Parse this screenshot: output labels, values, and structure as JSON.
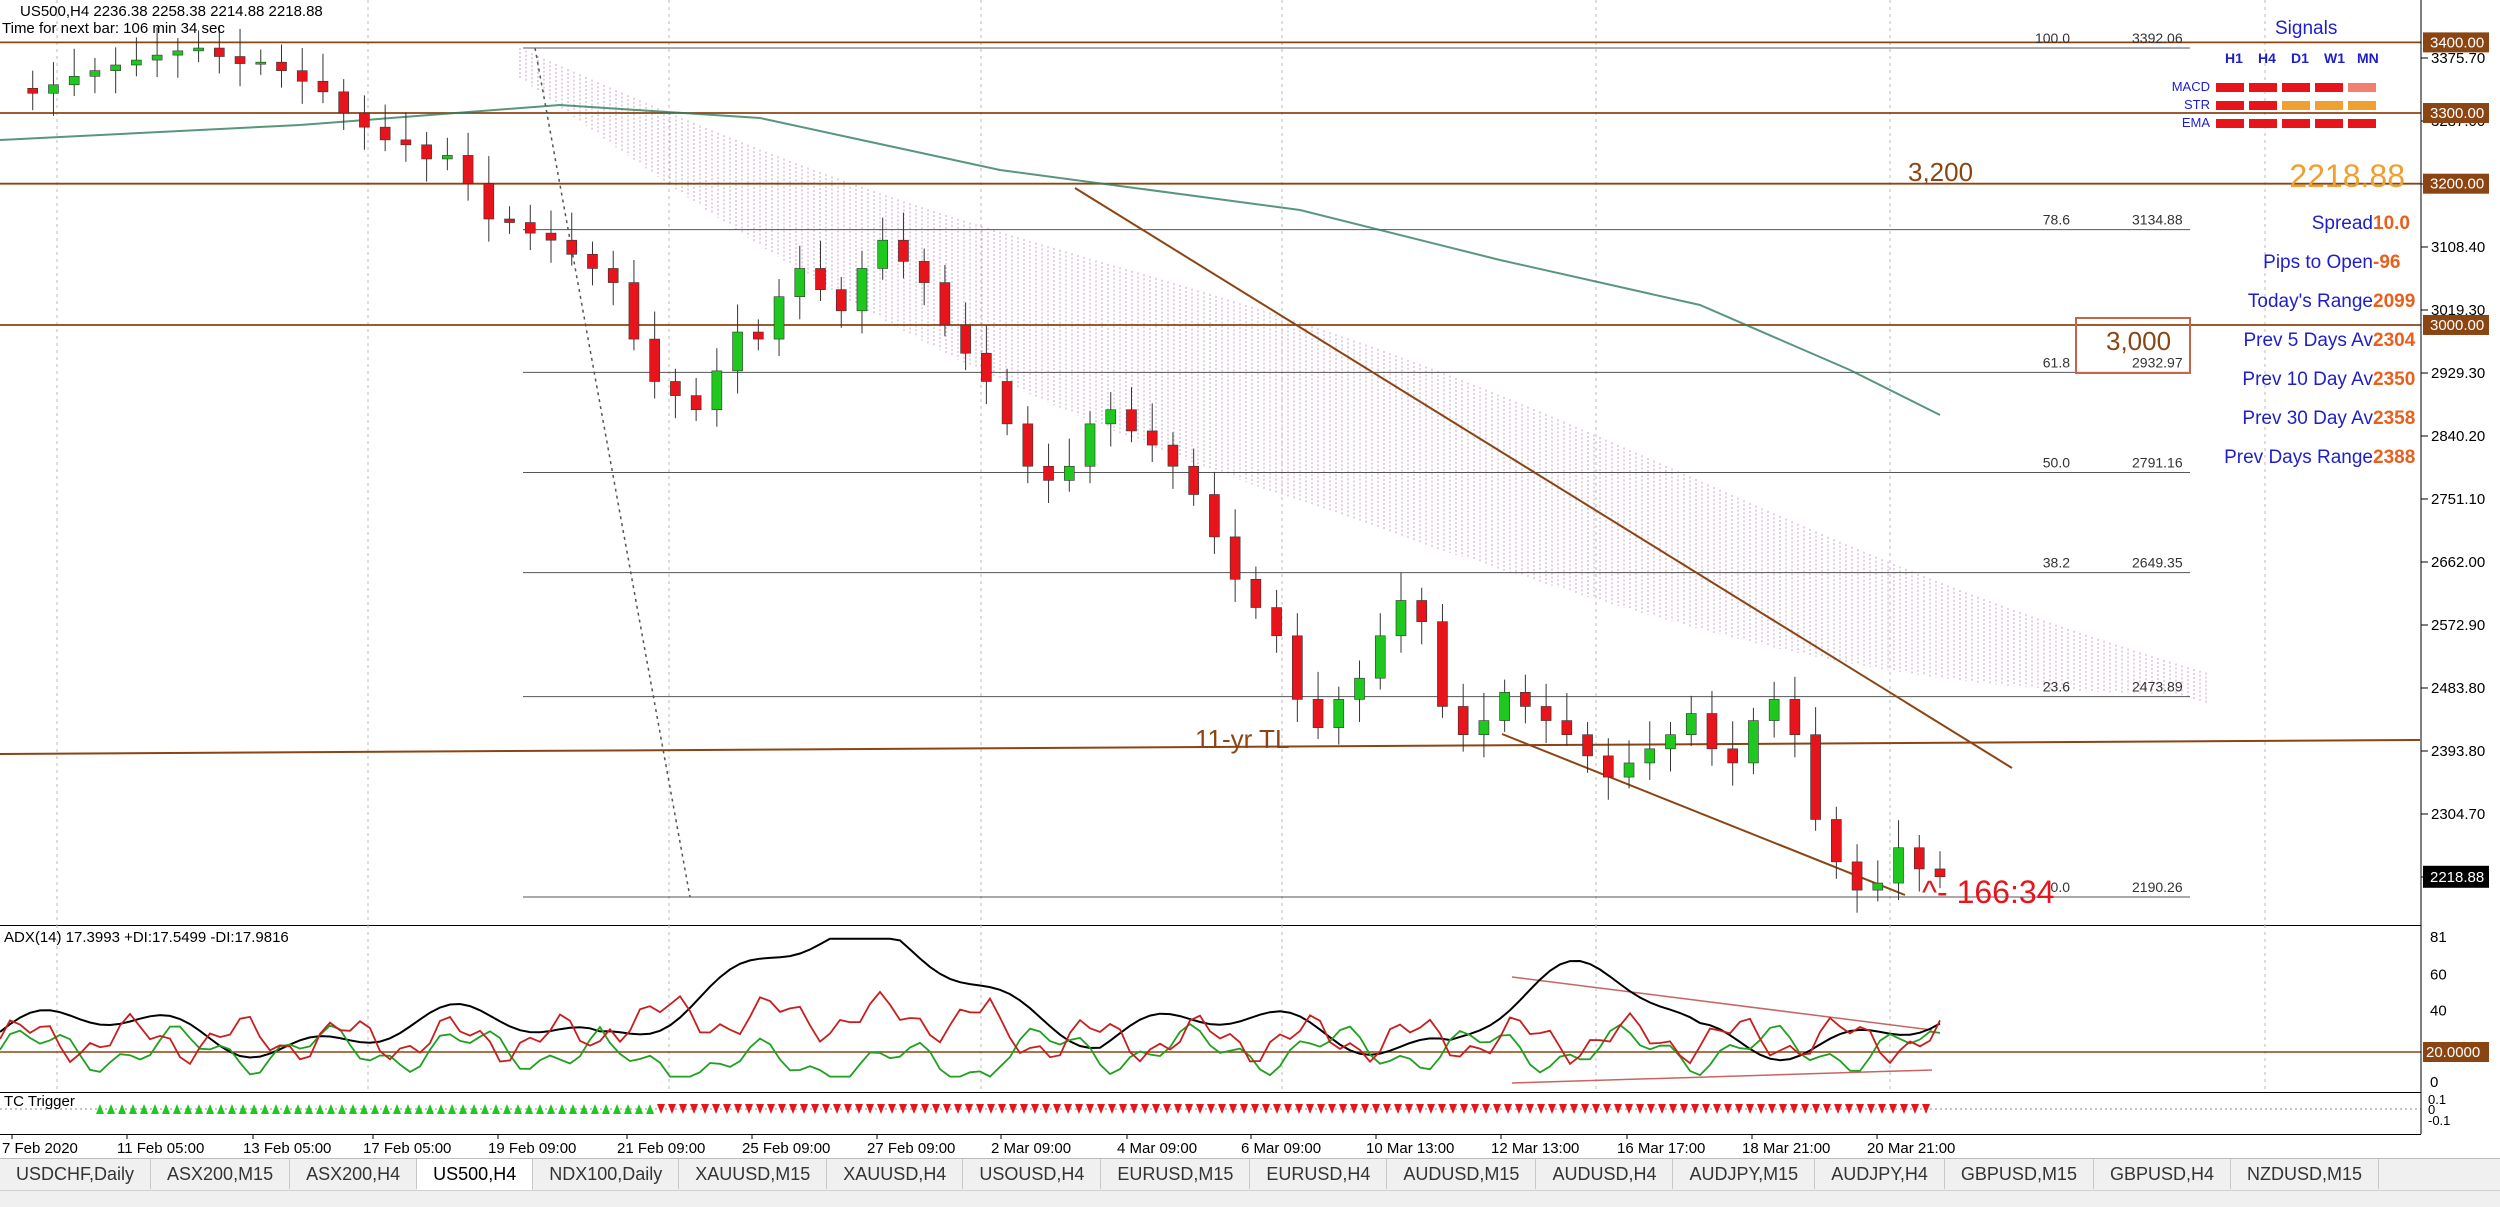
{
  "header": {
    "symbol_line": "US500,H4  2236.38 2258.38 2214.88 2218.88",
    "timer_line": "Time for next bar: 106 min 34 sec"
  },
  "price_axis": {
    "labels": [
      "3375.70",
      "3287.00",
      "3197.10",
      "3108.40",
      "3019.30",
      "2929.30",
      "2840.20",
      "2751.10",
      "2662.00",
      "2572.90",
      "2483.80",
      "2393.80",
      "2304.70",
      "2215.60"
    ],
    "level_boxes": [
      "3400.00",
      "3300.00",
      "3200.00",
      "3000.00"
    ],
    "current_price_box": "2218.88"
  },
  "fibonacci": [
    {
      "level": "100.0",
      "price": "3392.06"
    },
    {
      "level": "78.6",
      "price": "3134.88"
    },
    {
      "level": "61.8",
      "price": "2932.97"
    },
    {
      "level": "50.0",
      "price": "2791.16"
    },
    {
      "level": "38.2",
      "price": "2649.35"
    },
    {
      "level": "23.6",
      "price": "2473.89"
    },
    {
      "level": "0.0",
      "price": "2190.26"
    }
  ],
  "annotations": {
    "level_3200": "3,200",
    "level_3000": "3,000",
    "trendline_label": "11-yr TL",
    "drop_label": "^- 166:34"
  },
  "signals": {
    "title": "Signals",
    "timeframes": [
      "H1",
      "H4",
      "D1",
      "W1",
      "MN"
    ],
    "rows": [
      {
        "label": "MACD",
        "colors": [
          "#e8141b",
          "#e8141b",
          "#e8141b",
          "#e8141b",
          "#f08070"
        ]
      },
      {
        "label": "STR",
        "colors": [
          "#e8141b",
          "#e8141b",
          "#f0a030",
          "#f0a030",
          "#f0a030"
        ]
      },
      {
        "label": "EMA",
        "colors": [
          "#e8141b",
          "#e8141b",
          "#e8141b",
          "#e8141b",
          "#e8141b"
        ]
      }
    ],
    "big_price": "2218.88",
    "stats": [
      {
        "label": "Spread",
        "value": "10.0"
      },
      {
        "label": "Pips to Open",
        "value": "-96"
      },
      {
        "label": "Today's Range",
        "value": "2099"
      },
      {
        "label": "Prev 5 Days Av",
        "value": "2304"
      },
      {
        "label": "Prev 10 Day Av",
        "value": "2350"
      },
      {
        "label": "Prev 30 Day Av",
        "value": "2358"
      },
      {
        "label": "Prev Days Range",
        "value": "2388"
      }
    ]
  },
  "adx": {
    "label": "ADX(14) 17.3993 +DI:17.5499 -DI:17.9816",
    "axis_labels": [
      "81",
      "60",
      "40",
      "0"
    ],
    "level_box": "20.0000"
  },
  "tc_trigger": {
    "label": "TC Trigger",
    "axis_labels": [
      "0.1",
      "0",
      "-0.1"
    ]
  },
  "time_axis": [
    "7 Feb 2020",
    "11 Feb 05:00",
    "13 Feb 05:00",
    "17 Feb 05:00",
    "19 Feb 09:00",
    "21 Feb 09:00",
    "25 Feb 09:00",
    "27 Feb 09:00",
    "2 Mar 09:00",
    "4 Mar 09:00",
    "6 Mar 09:00",
    "10 Mar 13:00",
    "12 Mar 13:00",
    "16 Mar 17:00",
    "18 Mar 21:00",
    "20 Mar 21:00"
  ],
  "tabs": [
    "USDCHF,Daily",
    "ASX200,M15",
    "ASX200,H4",
    "US500,H4",
    "NDX100,Daily",
    "XAUUSD,M15",
    "XAUUSD,H4",
    "USOUSD,H4",
    "EURUSD,M15",
    "EURUSD,H4",
    "AUDUSD,M15",
    "AUDUSD,H4",
    "AUDJPY,M15",
    "AUDJPY,H4",
    "GBPUSD,M15",
    "GBPUSD,H4",
    "NZDUSD,M15"
  ],
  "active_tab": "US500,H4",
  "colors": {
    "bull": "#1ec81e",
    "bear": "#e8141b",
    "level_line": "#8b4513",
    "cloud": "#c8a0c8",
    "ema": "#2e7d5b",
    "signals_blue": "#1e1ecc",
    "stat_orange": "#e8601c",
    "big_price": "#f0a030",
    "adx_line": "#000000",
    "plus_di": "#1fa01f",
    "minus_di": "#c81e1e"
  },
  "chart_data": {
    "type": "candlestick",
    "symbol": "US500",
    "timeframe": "H4",
    "ylim": [
      2180,
      3405
    ],
    "ohlc_close_path": [
      3335,
      3328,
      3340,
      3352,
      3360,
      3368,
      3375,
      3382,
      3388,
      3392,
      3380,
      3370,
      3372,
      3360,
      3345,
      3330,
      3300,
      3280,
      3262,
      3255,
      3235,
      3240,
      3200,
      3150,
      3145,
      3130,
      3120,
      3100,
      3080,
      3060,
      2980,
      2920,
      2900,
      2880,
      2935,
      2990,
      2980,
      3040,
      3080,
      3050,
      3020,
      3080,
      3120,
      3090,
      3060,
      3000,
      2960,
      2920,
      2860,
      2800,
      2780,
      2800,
      2860,
      2880,
      2850,
      2830,
      2800,
      2760,
      2700,
      2640,
      2600,
      2560,
      2470,
      2430,
      2470,
      2500,
      2560,
      2610,
      2580,
      2460,
      2420,
      2440,
      2480,
      2460,
      2440,
      2420,
      2390,
      2360,
      2380,
      2400,
      2420,
      2450,
      2400,
      2380,
      2440,
      2470,
      2420,
      2300,
      2240,
      2200,
      2210,
      2260,
      2230,
      2218.88
    ],
    "levels": [
      3400,
      3300,
      3200,
      3000
    ],
    "fib_retracement": {
      "high": 3392.06,
      "low": 2190.26
    },
    "current_price": 2218.88
  }
}
